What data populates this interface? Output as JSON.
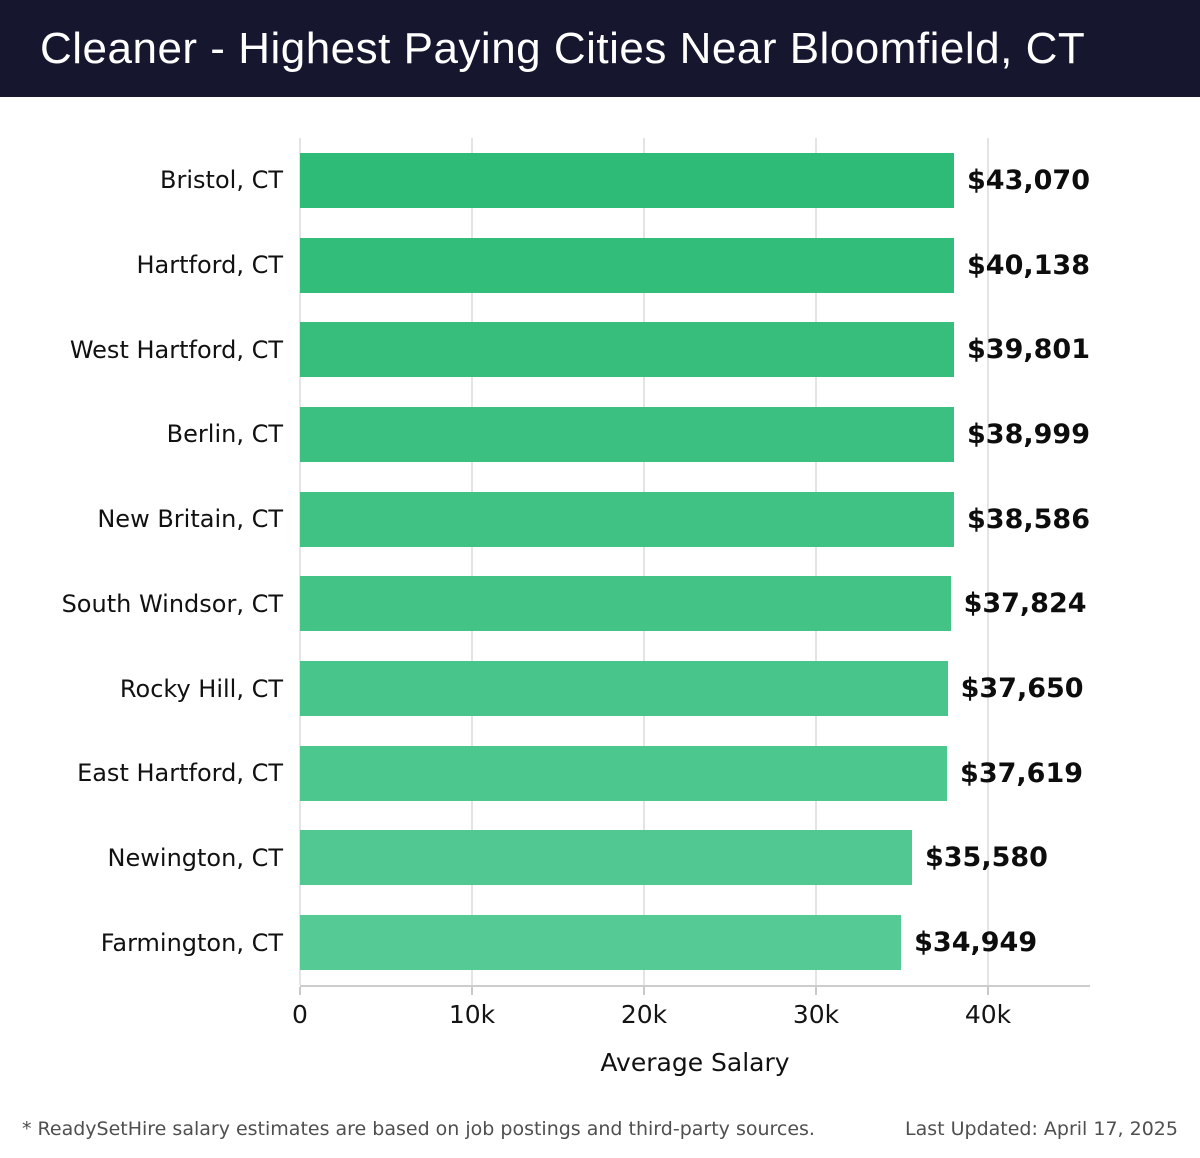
{
  "header": {
    "title": "Cleaner - Highest Paying Cities Near Bloomfield, CT",
    "background_color": "#16162f",
    "text_color": "#ffffff"
  },
  "chart_data": {
    "type": "bar",
    "orientation": "horizontal",
    "title": "Cleaner - Highest Paying Cities Near Bloomfield, CT",
    "categories": [
      "Bristol, CT",
      "Hartford, CT",
      "West Hartford, CT",
      "Berlin, CT",
      "New Britain, CT",
      "South Windsor, CT",
      "Rocky Hill, CT",
      "East Hartford, CT",
      "Newington, CT",
      "Farmington, CT"
    ],
    "values": [
      43070,
      40138,
      39801,
      38999,
      38586,
      37824,
      37650,
      37619,
      35580,
      34949
    ],
    "value_labels": [
      "$43,070",
      "$40,138",
      "$39,801",
      "$38,999",
      "$38,586",
      "$37,824",
      "$37,650",
      "$37,619",
      "$35,580",
      "$34,949"
    ],
    "xlabel": "Average Salary",
    "xtick_labels": [
      "0",
      "10k",
      "20k",
      "30k",
      "40k"
    ],
    "xtick_values": [
      0,
      10000,
      20000,
      30000,
      40000
    ],
    "xlim": [
      0,
      45930
    ],
    "grid": true,
    "legend": false,
    "bar_color_start": "#2ebb77",
    "bar_color_end": "#55ca94",
    "gridline_color": "#e4e4e4",
    "axis_color": "#cccccc",
    "tick_color": "#c9c9c9"
  },
  "footer": {
    "disclaimer": "* ReadySetHire salary estimates are based on job postings and third-party sources.",
    "last_updated": "Last Updated: April 17, 2025"
  }
}
